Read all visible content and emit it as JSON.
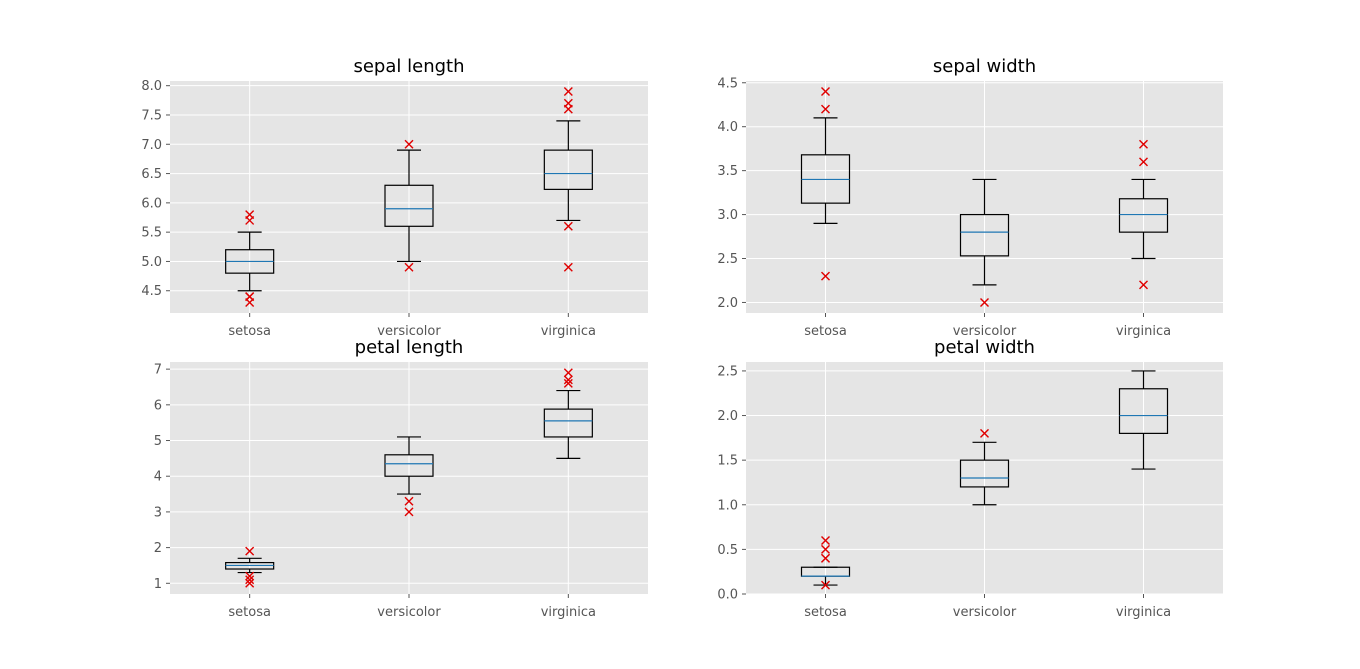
{
  "chart_data": [
    {
      "type": "box",
      "title": "sepal length",
      "categories": [
        "setosa",
        "versicolor",
        "virginica"
      ],
      "ylim": [
        4.12,
        8.08
      ],
      "yticks": [
        "4.5",
        "5.0",
        "5.5",
        "6.0",
        "6.5",
        "7.0",
        "7.5",
        "8.0"
      ],
      "grid": true,
      "boxes": [
        {
          "category": "setosa",
          "whisker_low": 4.5,
          "q1": 4.8,
          "median": 5.0,
          "q3": 5.2,
          "whisker_high": 5.5,
          "outliers": [
            4.3,
            4.4,
            4.4,
            5.7,
            5.8
          ]
        },
        {
          "category": "versicolor",
          "whisker_low": 5.0,
          "q1": 5.6,
          "median": 5.9,
          "q3": 6.3,
          "whisker_high": 6.9,
          "outliers": [
            4.9,
            7.0
          ]
        },
        {
          "category": "virginica",
          "whisker_low": 5.7,
          "q1": 6.23,
          "median": 6.5,
          "q3": 6.9,
          "whisker_high": 7.4,
          "outliers": [
            4.9,
            5.6,
            7.6,
            7.7,
            7.9
          ]
        }
      ]
    },
    {
      "type": "box",
      "title": "sepal width",
      "categories": [
        "setosa",
        "versicolor",
        "virginica"
      ],
      "ylim": [
        1.88,
        4.52
      ],
      "yticks": [
        "2.0",
        "2.5",
        "3.0",
        "3.5",
        "4.0",
        "4.5"
      ],
      "grid": true,
      "boxes": [
        {
          "category": "setosa",
          "whisker_low": 2.9,
          "q1": 3.13,
          "median": 3.4,
          "q3": 3.68,
          "whisker_high": 4.1,
          "outliers": [
            2.3,
            4.2,
            4.4
          ]
        },
        {
          "category": "versicolor",
          "whisker_low": 2.2,
          "q1": 2.53,
          "median": 2.8,
          "q3": 3.0,
          "whisker_high": 3.4,
          "outliers": [
            2.0
          ]
        },
        {
          "category": "virginica",
          "whisker_low": 2.5,
          "q1": 2.8,
          "median": 3.0,
          "q3": 3.18,
          "whisker_high": 3.4,
          "outliers": [
            2.2,
            3.6,
            3.8
          ]
        }
      ]
    },
    {
      "type": "box",
      "title": "petal length",
      "categories": [
        "setosa",
        "versicolor",
        "virginica"
      ],
      "ylim": [
        0.7,
        7.2
      ],
      "yticks": [
        "1",
        "2",
        "3",
        "4",
        "5",
        "6",
        "7"
      ],
      "grid": true,
      "boxes": [
        {
          "category": "setosa",
          "whisker_low": 1.3,
          "q1": 1.4,
          "median": 1.5,
          "q3": 1.58,
          "whisker_high": 1.7,
          "outliers": [
            1.0,
            1.1,
            1.2,
            1.9
          ]
        },
        {
          "category": "versicolor",
          "whisker_low": 3.5,
          "q1": 4.0,
          "median": 4.35,
          "q3": 4.6,
          "whisker_high": 5.1,
          "outliers": [
            3.0,
            3.3
          ]
        },
        {
          "category": "virginica",
          "whisker_low": 4.5,
          "q1": 5.1,
          "median": 5.55,
          "q3": 5.88,
          "whisker_high": 6.4,
          "outliers": [
            6.6,
            6.7,
            6.9
          ]
        }
      ]
    },
    {
      "type": "box",
      "title": "petal width",
      "categories": [
        "setosa",
        "versicolor",
        "virginica"
      ],
      "ylim": [
        0.0,
        2.6
      ],
      "yticks": [
        "0.0",
        "0.5",
        "1.0",
        "1.5",
        "2.0",
        "2.5"
      ],
      "grid": true,
      "boxes": [
        {
          "category": "setosa",
          "whisker_low": 0.1,
          "q1": 0.2,
          "median": 0.2,
          "q3": 0.3,
          "whisker_high": 0.3,
          "outliers": [
            0.1,
            0.4,
            0.4,
            0.5,
            0.6
          ]
        },
        {
          "category": "versicolor",
          "whisker_low": 1.0,
          "q1": 1.2,
          "median": 1.3,
          "q3": 1.5,
          "whisker_high": 1.7,
          "outliers": [
            1.8
          ]
        },
        {
          "category": "virginica",
          "whisker_low": 1.4,
          "q1": 1.8,
          "median": 2.0,
          "q3": 2.3,
          "whisker_high": 2.5,
          "outliers": []
        }
      ]
    }
  ],
  "colors": {
    "plot_background": "#e5e5e5",
    "grid": "#ffffff",
    "box": "#000000",
    "median": "#1f77b4",
    "outlier": "#e00000",
    "tick_label": "#555555"
  }
}
